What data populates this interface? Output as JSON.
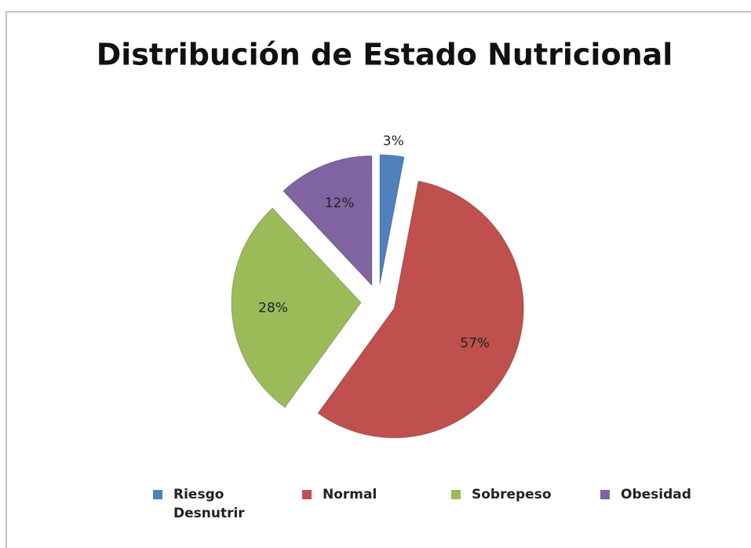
{
  "chart_data": {
    "type": "pie",
    "title": "Distribución de Estado Nutricional",
    "categories": [
      "Riesgo Desnutrir",
      "Normal",
      "Sobrepeso",
      "Obesidad"
    ],
    "values": [
      3,
      57,
      28,
      12
    ],
    "value_labels": [
      "3%",
      "57%",
      "28%",
      "12%"
    ],
    "colors": [
      "#4f81bd",
      "#c0504d",
      "#9bbb59",
      "#8064a2"
    ],
    "legend": "bottom"
  }
}
